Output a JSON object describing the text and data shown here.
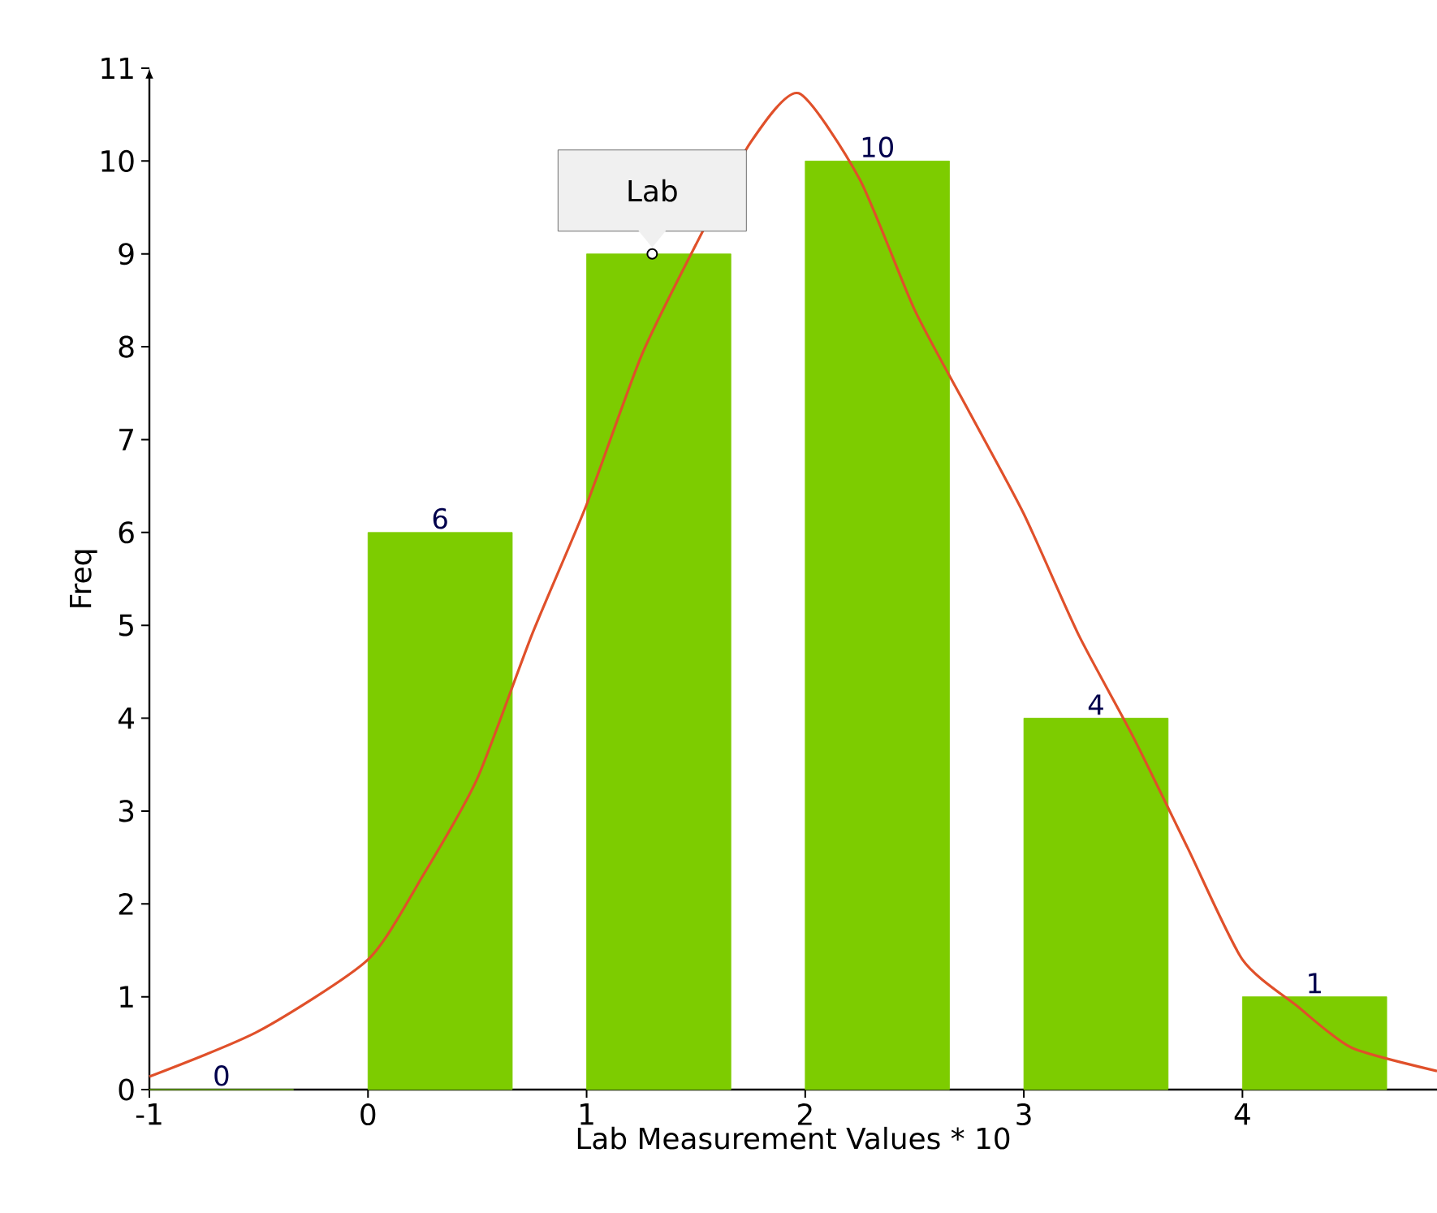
{
  "chart_data": {
    "type": "bar",
    "xlabel": "Lab Measurement Values * 10",
    "ylabel": "Freq",
    "x": [
      -0.67,
      0.33,
      1.33,
      2.33,
      3.33,
      4.33
    ],
    "series": [
      {
        "color": "#7dcc00",
        "values": [
          0,
          6,
          9,
          10,
          4,
          1
        ],
        "value_labels": [
          "0",
          "6",
          null,
          "10",
          "4",
          "1"
        ]
      },
      {
        "type": "line",
        "color": "#e0502a",
        "x": [
          -1,
          -0.5,
          0,
          0.25,
          0.5,
          0.75,
          1,
          1.25,
          1.5,
          1.75,
          1.97,
          2.25,
          2.5,
          2.75,
          3,
          3.25,
          3.5,
          3.75,
          4,
          4.25,
          4.5,
          4.89
        ],
        "values": [
          0.14,
          0.63,
          1.4,
          2.3,
          3.35,
          4.9,
          6.3,
          7.9,
          9.1,
          10.2,
          10.73,
          9.8,
          8.4,
          7.3,
          6.2,
          4.9,
          3.8,
          2.6,
          1.4,
          0.9,
          0.45,
          0.2
        ]
      }
    ],
    "annotations": [
      {
        "text": "Lab",
        "x": 1.3,
        "y": 9
      }
    ],
    "xlim": [
      -1,
      4.89
    ],
    "ylim": [
      0,
      11
    ],
    "xticks": [
      -1,
      0,
      1,
      2,
      3,
      4
    ],
    "yticks": [
      0,
      1,
      2,
      3,
      4,
      5,
      6,
      7,
      8,
      9,
      10,
      11
    ],
    "grid": false,
    "marker": "none",
    "line_style": "solid"
  }
}
